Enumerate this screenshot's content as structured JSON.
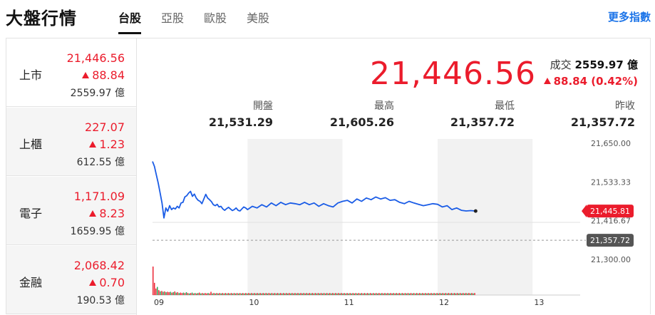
{
  "header": {
    "title": "大盤行情",
    "tabs": [
      "台股",
      "亞股",
      "歐股",
      "美股"
    ],
    "more_label": "更多指數"
  },
  "sidebar": {
    "items": [
      {
        "name": "上市",
        "price": "21,446.56",
        "change": "88.84",
        "volume": "2559.97 億"
      },
      {
        "name": "上櫃",
        "price": "227.07",
        "change": "1.23",
        "volume": "612.55 億"
      },
      {
        "name": "電子",
        "price": "1,171.09",
        "change": "8.23",
        "volume": "1659.95 億"
      },
      {
        "name": "金融",
        "price": "2,068.42",
        "change": "0.70",
        "volume": "190.53 億"
      }
    ]
  },
  "quote": {
    "price": "21,446.56",
    "volume_label": "成交",
    "volume_value": "2559.97 億",
    "change": "88.84 (0.42%)",
    "stats": [
      {
        "label": "開盤",
        "value": "21,531.29"
      },
      {
        "label": "最高",
        "value": "21,605.26"
      },
      {
        "label": "最低",
        "value": "21,357.72"
      },
      {
        "label": "昨收",
        "value": "21,357.72"
      }
    ]
  },
  "colors": {
    "up": "#eb1c2c",
    "line": "#1a5ce6",
    "accent_link": "#1a73e8",
    "prev_close_badge": "#555555",
    "up_volume_bar": "#eb1c2c",
    "down_volume_bar": "#1fa04c"
  },
  "chart_data": {
    "type": "line",
    "title": "",
    "xlabel": "",
    "ylabel": "",
    "x_ticks": [
      "09",
      "10",
      "11",
      "12",
      "13"
    ],
    "y_ticks": [
      "21,650.00",
      "21,533.33",
      "21,416.67",
      "21,300.00"
    ],
    "ylim": [
      21300,
      21650
    ],
    "grid": false,
    "current_label": "21,445.81",
    "prev_close_label": "21,357.72",
    "prev_close": 21357.72,
    "series": [
      {
        "x": [
          9.0,
          9.02,
          9.04,
          9.06,
          9.08,
          9.1,
          9.12,
          9.14,
          9.16,
          9.18,
          9.2,
          9.22,
          9.24,
          9.26,
          9.28,
          9.3,
          9.32,
          9.34,
          9.36,
          9.38,
          9.4,
          9.42,
          9.44,
          9.46,
          9.48,
          9.5,
          9.52,
          9.54,
          9.56,
          9.58,
          9.6,
          9.62,
          9.64,
          9.66,
          9.68,
          9.7,
          9.72,
          9.74,
          9.76,
          9.78,
          9.8,
          9.82,
          9.84,
          9.86,
          9.88,
          9.9,
          9.92,
          9.94,
          9.96,
          9.98,
          10.0,
          10.05,
          10.1,
          10.15,
          10.2,
          10.25,
          10.3,
          10.35,
          10.4,
          10.45,
          10.5,
          10.55,
          10.6,
          10.65,
          10.7,
          10.75,
          10.8,
          10.85,
          10.9,
          10.95,
          11.0,
          11.05,
          11.1,
          11.15,
          11.2,
          11.25,
          11.3,
          11.35,
          11.4,
          11.45,
          11.5,
          11.55,
          11.6,
          11.65,
          11.7,
          11.75,
          11.8,
          11.85,
          11.9,
          11.95,
          12.0,
          12.05,
          12.1,
          12.15,
          12.2,
          12.25,
          12.3,
          12.35,
          12.4
        ],
        "values": [
          21595,
          21580,
          21555,
          21530,
          21500,
          21470,
          21425,
          21455,
          21445,
          21462,
          21450,
          21455,
          21452,
          21460,
          21455,
          21470,
          21472,
          21488,
          21492,
          21500,
          21505,
          21490,
          21497,
          21485,
          21478,
          21475,
          21468,
          21482,
          21496,
          21485,
          21480,
          21474,
          21465,
          21462,
          21466,
          21458,
          21460,
          21452,
          21448,
          21453,
          21457,
          21452,
          21447,
          21450,
          21455,
          21448,
          21446,
          21452,
          21458,
          21455,
          21450,
          21460,
          21455,
          21465,
          21458,
          21470,
          21462,
          21472,
          21465,
          21470,
          21468,
          21465,
          21472,
          21465,
          21470,
          21460,
          21468,
          21462,
          21458,
          21470,
          21475,
          21478,
          21470,
          21482,
          21475,
          21485,
          21480,
          21488,
          21482,
          21486,
          21478,
          21480,
          21472,
          21468,
          21475,
          21470,
          21466,
          21462,
          21465,
          21468,
          21466,
          21458,
          21462,
          21450,
          21455,
          21448,
          21446,
          21447,
          21445.81
        ]
      }
    ],
    "volume_bars": [
      {
        "v": 70,
        "up": true
      },
      {
        "v": 30,
        "up": true
      },
      {
        "v": 16,
        "up": true
      },
      {
        "v": 20,
        "up": false
      },
      {
        "v": 12,
        "up": true
      },
      {
        "v": 9,
        "up": false
      },
      {
        "v": 10,
        "up": true
      },
      {
        "v": 8,
        "up": false
      },
      {
        "v": 9,
        "up": true
      },
      {
        "v": 7,
        "up": false
      },
      {
        "v": 8,
        "up": true
      },
      {
        "v": 7,
        "up": true
      },
      {
        "v": 8,
        "up": false
      },
      {
        "v": 6,
        "up": true
      },
      {
        "v": 7,
        "up": false
      },
      {
        "v": 9,
        "up": true
      },
      {
        "v": 6,
        "up": false
      },
      {
        "v": 7,
        "up": true
      },
      {
        "v": 5,
        "up": false
      },
      {
        "v": 6,
        "up": true
      },
      {
        "v": 5,
        "up": true
      },
      {
        "v": 6,
        "up": false
      },
      {
        "v": 5,
        "up": true
      },
      {
        "v": 7,
        "up": false
      },
      {
        "v": 5,
        "up": true
      },
      {
        "v": 4,
        "up": false
      },
      {
        "v": 5,
        "up": true
      },
      {
        "v": 6,
        "up": false
      },
      {
        "v": 4,
        "up": true
      },
      {
        "v": 5,
        "up": false
      },
      {
        "v": 4,
        "up": true
      },
      {
        "v": 5,
        "up": false
      },
      {
        "v": 6,
        "up": true
      },
      {
        "v": 4,
        "up": false
      },
      {
        "v": 5,
        "up": true
      },
      {
        "v": 4,
        "up": false
      },
      {
        "v": 5,
        "up": true
      },
      {
        "v": 4,
        "up": true
      },
      {
        "v": 5,
        "up": false
      },
      {
        "v": 4,
        "up": true
      },
      {
        "v": 8,
        "up": true
      },
      {
        "v": 4,
        "up": false
      },
      {
        "v": 5,
        "up": true
      },
      {
        "v": 4,
        "up": false
      },
      {
        "v": 5,
        "up": true
      },
      {
        "v": 4,
        "up": false
      },
      {
        "v": 5,
        "up": true
      },
      {
        "v": 4,
        "up": false
      },
      {
        "v": 5,
        "up": true
      },
      {
        "v": 4,
        "up": false
      },
      {
        "v": 5,
        "up": true
      },
      {
        "v": 4,
        "up": false
      },
      {
        "v": 5,
        "up": true
      },
      {
        "v": 4,
        "up": false
      },
      {
        "v": 5,
        "up": true
      },
      {
        "v": 4,
        "up": false
      },
      {
        "v": 5,
        "up": true
      },
      {
        "v": 4,
        "up": false
      },
      {
        "v": 5,
        "up": true
      },
      {
        "v": 4,
        "up": false
      },
      {
        "v": 5,
        "up": true
      },
      {
        "v": 4,
        "up": false
      },
      {
        "v": 5,
        "up": true
      },
      {
        "v": 4,
        "up": false
      },
      {
        "v": 5,
        "up": true
      },
      {
        "v": 4,
        "up": false
      },
      {
        "v": 5,
        "up": true
      },
      {
        "v": 4,
        "up": false
      },
      {
        "v": 5,
        "up": true
      },
      {
        "v": 4,
        "up": false
      },
      {
        "v": 5,
        "up": true
      },
      {
        "v": 4,
        "up": false
      },
      {
        "v": 5,
        "up": true
      },
      {
        "v": 4,
        "up": false
      },
      {
        "v": 5,
        "up": true
      },
      {
        "v": 4,
        "up": false
      },
      {
        "v": 5,
        "up": true
      },
      {
        "v": 4,
        "up": false
      },
      {
        "v": 5,
        "up": true
      },
      {
        "v": 4,
        "up": false
      },
      {
        "v": 5,
        "up": true
      },
      {
        "v": 4,
        "up": false
      },
      {
        "v": 5,
        "up": true
      },
      {
        "v": 4,
        "up": false
      },
      {
        "v": 5,
        "up": true
      },
      {
        "v": 4,
        "up": false
      },
      {
        "v": 5,
        "up": true
      },
      {
        "v": 4,
        "up": false
      },
      {
        "v": 5,
        "up": true
      },
      {
        "v": 4,
        "up": false
      },
      {
        "v": 5,
        "up": true
      },
      {
        "v": 4,
        "up": false
      },
      {
        "v": 5,
        "up": true
      },
      {
        "v": 4,
        "up": false
      },
      {
        "v": 5,
        "up": true
      },
      {
        "v": 4,
        "up": false
      },
      {
        "v": 5,
        "up": true
      },
      {
        "v": 4,
        "up": false
      },
      {
        "v": 5,
        "up": true
      },
      {
        "v": 4,
        "up": false
      },
      {
        "v": 5,
        "up": true
      },
      {
        "v": 4,
        "up": false
      },
      {
        "v": 5,
        "up": true
      },
      {
        "v": 4,
        "up": false
      },
      {
        "v": 5,
        "up": true
      },
      {
        "v": 4,
        "up": false
      },
      {
        "v": 5,
        "up": true
      },
      {
        "v": 4,
        "up": false
      },
      {
        "v": 5,
        "up": true
      },
      {
        "v": 4,
        "up": false
      },
      {
        "v": 5,
        "up": true
      },
      {
        "v": 4,
        "up": false
      },
      {
        "v": 5,
        "up": true
      },
      {
        "v": 4,
        "up": false
      },
      {
        "v": 5,
        "up": true
      },
      {
        "v": 4,
        "up": false
      },
      {
        "v": 5,
        "up": true
      },
      {
        "v": 4,
        "up": false
      },
      {
        "v": 5,
        "up": true
      },
      {
        "v": 4,
        "up": false
      },
      {
        "v": 5,
        "up": true
      },
      {
        "v": 4,
        "up": false
      },
      {
        "v": 5,
        "up": true
      },
      {
        "v": 4,
        "up": false
      },
      {
        "v": 5,
        "up": true
      },
      {
        "v": 4,
        "up": false
      },
      {
        "v": 5,
        "up": true
      },
      {
        "v": 4,
        "up": false
      },
      {
        "v": 5,
        "up": true
      },
      {
        "v": 4,
        "up": false
      },
      {
        "v": 5,
        "up": true
      },
      {
        "v": 4,
        "up": false
      },
      {
        "v": 5,
        "up": true
      },
      {
        "v": 4,
        "up": false
      },
      {
        "v": 5,
        "up": true
      },
      {
        "v": 4,
        "up": false
      },
      {
        "v": 5,
        "up": true
      },
      {
        "v": 4,
        "up": false
      },
      {
        "v": 5,
        "up": true
      },
      {
        "v": 4,
        "up": false
      },
      {
        "v": 5,
        "up": true
      },
      {
        "v": 4,
        "up": false
      },
      {
        "v": 5,
        "up": true
      },
      {
        "v": 4,
        "up": false
      },
      {
        "v": 5,
        "up": true
      },
      {
        "v": 4,
        "up": false
      },
      {
        "v": 5,
        "up": true
      },
      {
        "v": 4,
        "up": false
      },
      {
        "v": 5,
        "up": true
      },
      {
        "v": 4,
        "up": false
      },
      {
        "v": 5,
        "up": true
      },
      {
        "v": 4,
        "up": false
      },
      {
        "v": 5,
        "up": true
      },
      {
        "v": 4,
        "up": false
      },
      {
        "v": 5,
        "up": true
      },
      {
        "v": 4,
        "up": false
      },
      {
        "v": 5,
        "up": true
      },
      {
        "v": 4,
        "up": false
      },
      {
        "v": 5,
        "up": true
      },
      {
        "v": 4,
        "up": false
      },
      {
        "v": 5,
        "up": true
      },
      {
        "v": 4,
        "up": false
      },
      {
        "v": 5,
        "up": true
      },
      {
        "v": 4,
        "up": false
      },
      {
        "v": 5,
        "up": true
      },
      {
        "v": 4,
        "up": false
      },
      {
        "v": 5,
        "up": true
      },
      {
        "v": 4,
        "up": false
      },
      {
        "v": 5,
        "up": true
      },
      {
        "v": 4,
        "up": false
      },
      {
        "v": 5,
        "up": true
      },
      {
        "v": 4,
        "up": false
      },
      {
        "v": 5,
        "up": true
      },
      {
        "v": 4,
        "up": false
      },
      {
        "v": 5,
        "up": true
      },
      {
        "v": 4,
        "up": false
      },
      {
        "v": 5,
        "up": true
      },
      {
        "v": 4,
        "up": false
      },
      {
        "v": 5,
        "up": true
      },
      {
        "v": 4,
        "up": false
      },
      {
        "v": 5,
        "up": true
      },
      {
        "v": 4,
        "up": false
      },
      {
        "v": 5,
        "up": true
      },
      {
        "v": 4,
        "up": false
      },
      {
        "v": 5,
        "up": true
      },
      {
        "v": 4,
        "up": false
      },
      {
        "v": 5,
        "up": true
      },
      {
        "v": 4,
        "up": false
      },
      {
        "v": 5,
        "up": true
      },
      {
        "v": 4,
        "up": false
      },
      {
        "v": 5,
        "up": true
      },
      {
        "v": 4,
        "up": false
      },
      {
        "v": 5,
        "up": true
      },
      {
        "v": 4,
        "up": false
      },
      {
        "v": 5,
        "up": true
      },
      {
        "v": 4,
        "up": false
      },
      {
        "v": 5,
        "up": true
      },
      {
        "v": 4,
        "up": false
      },
      {
        "v": 5,
        "up": true
      },
      {
        "v": 4,
        "up": false
      },
      {
        "v": 5,
        "up": true
      },
      {
        "v": 4,
        "up": false
      },
      {
        "v": 5,
        "up": true
      },
      {
        "v": 4,
        "up": false
      },
      {
        "v": 5,
        "up": true
      },
      {
        "v": 4,
        "up": false
      },
      {
        "v": 5,
        "up": true
      },
      {
        "v": 4,
        "up": false
      },
      {
        "v": 5,
        "up": true
      },
      {
        "v": 4,
        "up": false
      },
      {
        "v": 5,
        "up": true
      },
      {
        "v": 4,
        "up": false
      },
      {
        "v": 5,
        "up": true
      },
      {
        "v": 4,
        "up": false
      },
      {
        "v": 5,
        "up": true
      },
      {
        "v": 4,
        "up": false
      },
      {
        "v": 5,
        "up": true
      },
      {
        "v": 4,
        "up": false
      },
      {
        "v": 5,
        "up": true
      },
      {
        "v": 4,
        "up": false
      },
      {
        "v": 5,
        "up": true
      },
      {
        "v": 4,
        "up": false
      },
      {
        "v": 5,
        "up": true
      }
    ]
  }
}
